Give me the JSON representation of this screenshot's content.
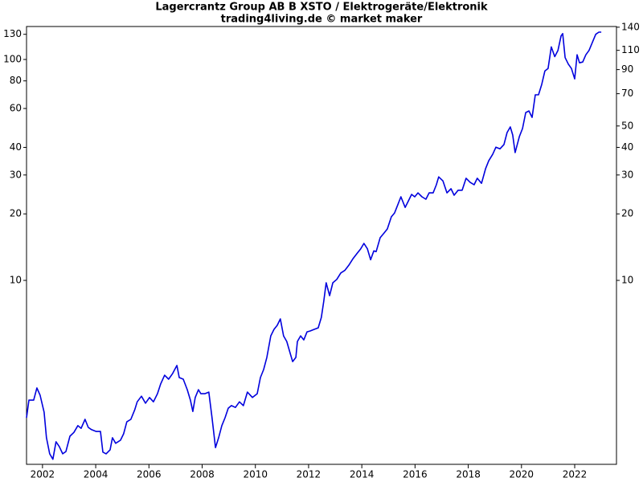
{
  "chart_data": {
    "type": "line",
    "title": "Lagercrantz Group AB B XSTO / Elektrogeräte/Elektronik",
    "subtitle": "trading4living.de © market maker",
    "log_scale": true,
    "color": "#0000dd",
    "x": [
      2001.4,
      2001.49,
      2001.67,
      2001.79,
      2001.91,
      2002.06,
      2002.15,
      2002.27,
      2002.39,
      2002.51,
      2002.63,
      2002.76,
      2002.88,
      2003.03,
      2003.18,
      2003.33,
      2003.45,
      2003.6,
      2003.72,
      2003.84,
      2004.02,
      2004.18,
      2004.27,
      2004.39,
      2004.54,
      2004.63,
      2004.75,
      2004.93,
      2005.05,
      2005.17,
      2005.32,
      2005.47,
      2005.56,
      2005.72,
      2005.87,
      2006.02,
      2006.17,
      2006.32,
      2006.44,
      2006.59,
      2006.74,
      2006.89,
      2007.05,
      2007.14,
      2007.29,
      2007.44,
      2007.56,
      2007.65,
      2007.74,
      2007.86,
      2007.95,
      2008.1,
      2008.25,
      2008.37,
      2008.5,
      2008.62,
      2008.74,
      2008.86,
      2008.98,
      2009.1,
      2009.25,
      2009.4,
      2009.55,
      2009.7,
      2009.89,
      2010.07,
      2010.19,
      2010.31,
      2010.43,
      2010.58,
      2010.7,
      2010.82,
      2010.94,
      2011.06,
      2011.18,
      2011.31,
      2011.4,
      2011.52,
      2011.58,
      2011.7,
      2011.82,
      2011.94,
      2012.06,
      2012.21,
      2012.36,
      2012.48,
      2012.57,
      2012.66,
      2012.79,
      2012.91,
      2013.06,
      2013.21,
      2013.36,
      2013.51,
      2013.66,
      2013.81,
      2013.96,
      2014.08,
      2014.21,
      2014.33,
      2014.45,
      2014.54,
      2014.69,
      2014.84,
      2014.96,
      2015.11,
      2015.23,
      2015.35,
      2015.47,
      2015.63,
      2015.75,
      2015.87,
      2015.99,
      2016.11,
      2016.26,
      2016.41,
      2016.53,
      2016.68,
      2016.8,
      2016.89,
      2017.05,
      2017.2,
      2017.35,
      2017.47,
      2017.62,
      2017.77,
      2017.92,
      2018.07,
      2018.22,
      2018.34,
      2018.5,
      2018.65,
      2018.77,
      2018.92,
      2019.04,
      2019.19,
      2019.34,
      2019.46,
      2019.58,
      2019.67,
      2019.76,
      2019.92,
      2020.04,
      2020.16,
      2020.28,
      2020.4,
      2020.52,
      2020.64,
      2020.76,
      2020.88,
      2021.0,
      2021.12,
      2021.25,
      2021.37,
      2021.49,
      2021.55,
      2021.64,
      2021.76,
      2021.88,
      2022.0,
      2022.09,
      2022.18,
      2022.3,
      2022.42,
      2022.54,
      2022.67,
      2022.79,
      2022.91,
      2023.0
    ],
    "values": [
      2.39,
      2.87,
      2.87,
      3.26,
      3.02,
      2.53,
      1.94,
      1.64,
      1.55,
      1.86,
      1.77,
      1.64,
      1.68,
      1.97,
      2.05,
      2.2,
      2.14,
      2.35,
      2.16,
      2.11,
      2.07,
      2.07,
      1.67,
      1.64,
      1.71,
      1.94,
      1.83,
      1.89,
      2.02,
      2.29,
      2.35,
      2.6,
      2.82,
      2.99,
      2.78,
      2.95,
      2.82,
      3.07,
      3.4,
      3.72,
      3.57,
      3.79,
      4.12,
      3.63,
      3.57,
      3.2,
      2.87,
      2.55,
      2.95,
      3.2,
      3.07,
      3.07,
      3.12,
      2.39,
      1.75,
      1.94,
      2.2,
      2.39,
      2.64,
      2.71,
      2.66,
      2.82,
      2.71,
      3.12,
      2.95,
      3.07,
      3.63,
      3.95,
      4.48,
      5.61,
      6.0,
      6.26,
      6.69,
      5.61,
      5.29,
      4.67,
      4.29,
      4.48,
      5.29,
      5.61,
      5.38,
      5.85,
      5.9,
      6.0,
      6.1,
      6.8,
      8.04,
      9.75,
      8.53,
      9.75,
      10.1,
      10.8,
      11.1,
      11.7,
      12.5,
      13.2,
      13.9,
      14.7,
      13.9,
      12.4,
      13.6,
      13.5,
      15.6,
      16.4,
      17.1,
      19.4,
      20.2,
      22.0,
      23.9,
      21.4,
      22.9,
      24.5,
      23.9,
      24.9,
      23.9,
      23.3,
      24.9,
      24.9,
      27.1,
      29.4,
      28.2,
      24.9,
      26.0,
      24.3,
      25.6,
      25.6,
      29.0,
      27.8,
      27.1,
      29.0,
      27.5,
      32.0,
      34.8,
      37.2,
      40.1,
      39.4,
      41.2,
      46.7,
      49.5,
      45.5,
      37.9,
      44.8,
      48.7,
      57.5,
      58.5,
      54.7,
      69.2,
      69.2,
      77.1,
      88.7,
      91.0,
      114,
      103,
      110,
      128,
      131,
      102,
      95.3,
      91.0,
      81.7,
      105,
      96.6,
      97.4,
      105,
      110,
      120,
      130,
      133,
      133
    ],
    "xlim": [
      2001.4,
      2023.57
    ],
    "xticks": [
      2002,
      2004,
      2006,
      2008,
      2010,
      2012,
      2014,
      2016,
      2018,
      2020,
      2022
    ],
    "ylim": [
      1.47,
      141
    ],
    "yticks": [
      130,
      100,
      80,
      60,
      40,
      30,
      20,
      10
    ],
    "y2lim": [
      1.47,
      141
    ],
    "y2ticks": [
      140,
      110,
      90,
      70,
      50,
      40,
      30,
      20,
      10
    ]
  }
}
